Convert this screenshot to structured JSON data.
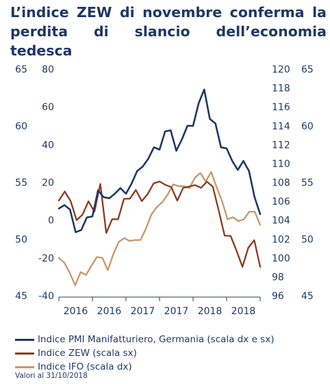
{
  "title": "L’indice ZEW di novembre conferma la perdita di slancio dell’economia tedesca",
  "footnote": "Valori al 31/10/2018",
  "chart_data": {
    "type": "line",
    "x_ticks": [
      "2016",
      "2016",
      "2017",
      "2017",
      "2018",
      "2018"
    ],
    "axes": {
      "left_outer": {
        "ticks": [
          "65",
          "60",
          "55",
          "50",
          "45"
        ],
        "range": [
          45,
          65
        ]
      },
      "left_inner": {
        "ticks": [
          "80",
          "60",
          "40",
          "20",
          "0",
          "-20",
          "-40"
        ],
        "range": [
          -40,
          80
        ]
      },
      "right_inner": {
        "ticks": [
          "120",
          "118",
          "116",
          "114",
          "112",
          "110",
          "108",
          "106",
          "104",
          "102",
          "100",
          "98",
          "96"
        ],
        "range": [
          96,
          120
        ]
      },
      "right_outer": {
        "ticks": [
          "65",
          "60",
          "55",
          "50",
          "45"
        ],
        "range": [
          45,
          65
        ]
      }
    },
    "series": [
      {
        "name": "Indice PMI Manifatturiero, Germania (scala dx e sx)",
        "color": "#1f3864",
        "axis": "outer",
        "values": [
          52.7,
          53.0,
          52.6,
          50.6,
          50.8,
          51.9,
          52.0,
          54.3,
          53.7,
          53.6,
          54.0,
          54.5,
          54.0,
          54.9,
          56.0,
          56.4,
          57.1,
          58.1,
          57.9,
          59.5,
          59.6,
          57.8,
          58.8,
          60.0,
          60.0,
          62.0,
          63.2,
          60.6,
          60.2,
          58.1,
          58.0,
          56.9,
          56.1,
          56.9,
          56.0,
          53.7,
          52.2
        ]
      },
      {
        "name": "Indice ZEW (scala sx)",
        "color": "#8b3a1e",
        "axis": "left_inner",
        "values": [
          10.4,
          15.2,
          10.0,
          0.0,
          3.0,
          10.0,
          4.5,
          19.2,
          -6.8,
          0.5,
          0.5,
          11.3,
          11.4,
          16.0,
          10.1,
          13.8,
          19.5,
          20.5,
          18.7,
          17.5,
          10.4,
          17.1,
          17.8,
          18.6,
          17.1,
          20.4,
          17.8,
          5.1,
          -8.2,
          -8.3,
          -16.1,
          -24.7,
          -14.6,
          -10.6,
          -24.7
        ]
      },
      {
        "name": "Indice IFO (scala dx)",
        "color": "#c8956b",
        "axis": "right_inner",
        "values": [
          100.0,
          99.5,
          98.4,
          97.1,
          98.5,
          98.2,
          99.2,
          100.1,
          100.0,
          98.7,
          100.4,
          101.7,
          102.1,
          101.8,
          101.9,
          101.9,
          103.1,
          104.6,
          105.4,
          105.9,
          106.7,
          107.8,
          107.6,
          107.6,
          107.4,
          108.5,
          109.0,
          108.1,
          109.1,
          107.5,
          106.0,
          104.1,
          104.3,
          103.9,
          104.1,
          104.9,
          104.9,
          103.5
        ]
      }
    ]
  }
}
